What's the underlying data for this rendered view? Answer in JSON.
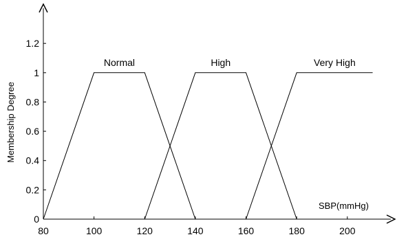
{
  "chart_data": {
    "type": "line",
    "title": "",
    "xlabel": "SBP(mmHg)",
    "ylabel": "Membership Degree",
    "xlim": [
      80,
      212
    ],
    "ylim": [
      0,
      1.32
    ],
    "x_ticks": [
      80,
      100,
      120,
      140,
      160,
      180,
      200
    ],
    "x_tick_labels": [
      "80",
      "100",
      "120",
      "140",
      "160",
      "180",
      "200"
    ],
    "y_ticks": [
      0,
      0.2,
      0.4,
      0.6,
      0.8,
      1,
      1.2
    ],
    "y_tick_labels": [
      "0",
      "0.2",
      "0.4",
      "0.6",
      "0.8",
      "1",
      "1.2"
    ],
    "grid": false,
    "legend": "labels placed above each curve",
    "series": [
      {
        "name": "Normal",
        "x": [
          80,
          100,
          120,
          140
        ],
        "y": [
          0,
          1,
          1,
          0
        ]
      },
      {
        "name": "High",
        "x": [
          120,
          140,
          160,
          180
        ],
        "y": [
          0,
          1,
          1,
          0
        ]
      },
      {
        "name": "Very High",
        "x": [
          160,
          180,
          210
        ],
        "y": [
          0,
          1,
          1
        ]
      }
    ]
  }
}
